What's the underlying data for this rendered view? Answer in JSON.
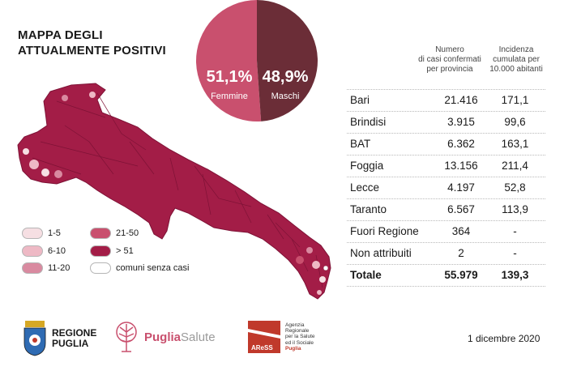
{
  "title": {
    "line1": "MAPPA DEGLI",
    "line2": "ATTUALMENTE POSITIVI"
  },
  "gender": {
    "female_pct": "51,1%",
    "female_label": "Femmine",
    "male_pct": "48,9%",
    "male_label": "Maschi",
    "female_color": "#c9506e",
    "male_color": "#6b2d37"
  },
  "table": {
    "header_cases": [
      "Numero",
      "di casi confermati",
      "per provincia"
    ],
    "header_incidence": [
      "Incidenza",
      "cumulata per",
      "10.000 abitanti"
    ],
    "rows": [
      {
        "province": "Bari",
        "cases": "21.416",
        "incidence": "171,1"
      },
      {
        "province": "Brindisi",
        "cases": "3.915",
        "incidence": "99,6"
      },
      {
        "province": "BAT",
        "cases": "6.362",
        "incidence": "163,1"
      },
      {
        "province": "Foggia",
        "cases": "13.156",
        "incidence": "211,4"
      },
      {
        "province": "Lecce",
        "cases": "4.197",
        "incidence": "52,8"
      },
      {
        "province": "Taranto",
        "cases": "6.567",
        "incidence": "113,9"
      },
      {
        "province": "Fuori Regione",
        "cases": "364",
        "incidence": "-"
      },
      {
        "province": "Non attribuiti",
        "cases": "2",
        "incidence": "-"
      }
    ],
    "total": {
      "label": "Totale",
      "cases": "55.979",
      "incidence": "139,3"
    }
  },
  "legend": [
    {
      "label": "1-5",
      "color": "#f6dfe3"
    },
    {
      "label": "21-50",
      "color": "#c9506e"
    },
    {
      "label": "6-10",
      "color": "#eeb9c5"
    },
    {
      "label": "> 51",
      "color": "#a31d47"
    },
    {
      "label": "11-20",
      "color": "#d98aa0"
    },
    {
      "label": "comuni senza casi",
      "color": "#ffffff"
    }
  ],
  "map_colors": {
    "base": "#a31d47",
    "border": "#7e1236"
  },
  "logos": {
    "regione_line1": "REGIONE",
    "regione_line2": "PUGLIA",
    "puglia": "Puglia",
    "salute": "Salute",
    "aress": "AReSS",
    "aress_desc": [
      "Agenzia",
      "Regionale",
      "per la Salute",
      "ed il Sociale",
      "Puglia"
    ]
  },
  "date": "1 dicembre 2020",
  "chart_data": {
    "type": "pie",
    "title": "",
    "labels": [
      "Femmine",
      "Maschi"
    ],
    "values": [
      51.1,
      48.9
    ]
  }
}
